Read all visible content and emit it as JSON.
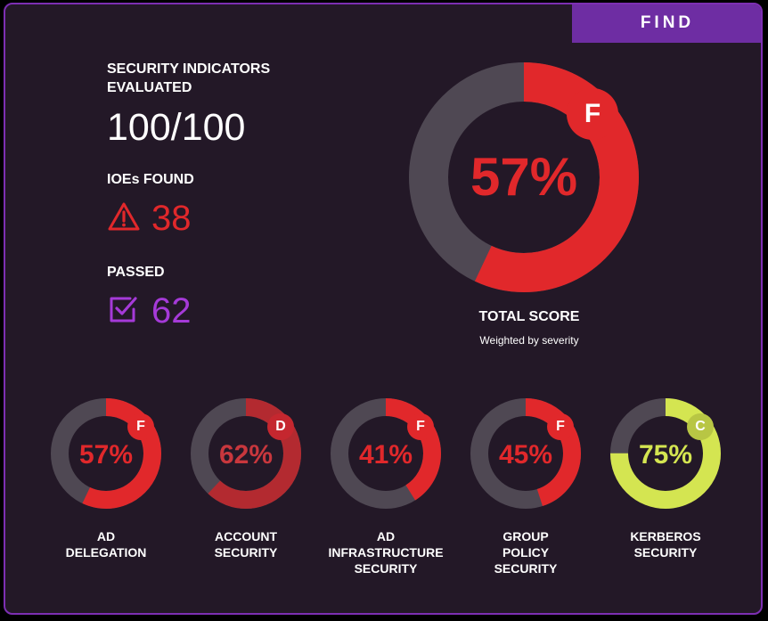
{
  "find_tab": {
    "label": "FIND"
  },
  "summary": {
    "indicators_label_line1": "SECURITY INDICATORS",
    "indicators_label_line2": "EVALUATED",
    "indicators_value": "100/100",
    "ioes_label": "IOEs FOUND",
    "ioes_value": "38",
    "passed_label": "PASSED",
    "passed_value": "62"
  },
  "total": {
    "percent": 57,
    "percent_text": "57%",
    "grade": "F",
    "label": "TOTAL SCORE",
    "sublabel": "Weighted by severity"
  },
  "categories": [
    {
      "name_line1": "AD",
      "name_line2": "DELEGATION",
      "name_line3": "",
      "percent": 57,
      "percent_text": "57%",
      "grade": "F"
    },
    {
      "name_line1": "ACCOUNT",
      "name_line2": "SECURITY",
      "name_line3": "",
      "percent": 62,
      "percent_text": "62%",
      "grade": "D"
    },
    {
      "name_line1": "AD",
      "name_line2": "INFRASTRUCTURE",
      "name_line3": "SECURITY",
      "percent": 41,
      "percent_text": "41%",
      "grade": "F"
    },
    {
      "name_line1": "GROUP",
      "name_line2": "POLICY",
      "name_line3": "SECURITY",
      "percent": 45,
      "percent_text": "45%",
      "grade": "F"
    },
    {
      "name_line1": "KERBEROS",
      "name_line2": "SECURITY",
      "name_line3": "",
      "percent": 75,
      "percent_text": "75%",
      "grade": "C"
    }
  ],
  "colors": {
    "background": "#231827",
    "border": "#7d2fb3",
    "accent_purple": "#6e2da3",
    "fail_red": "#e1282b",
    "track_gray": "#4f4853",
    "passed_purple": "#a53ad8",
    "kerberos_green": "#d4e551",
    "grade_d": "#c5272f",
    "grade_c": "#b8c644"
  },
  "icons": {
    "ioes": "warning-triangle-icon",
    "passed": "checkbox-check-icon"
  }
}
